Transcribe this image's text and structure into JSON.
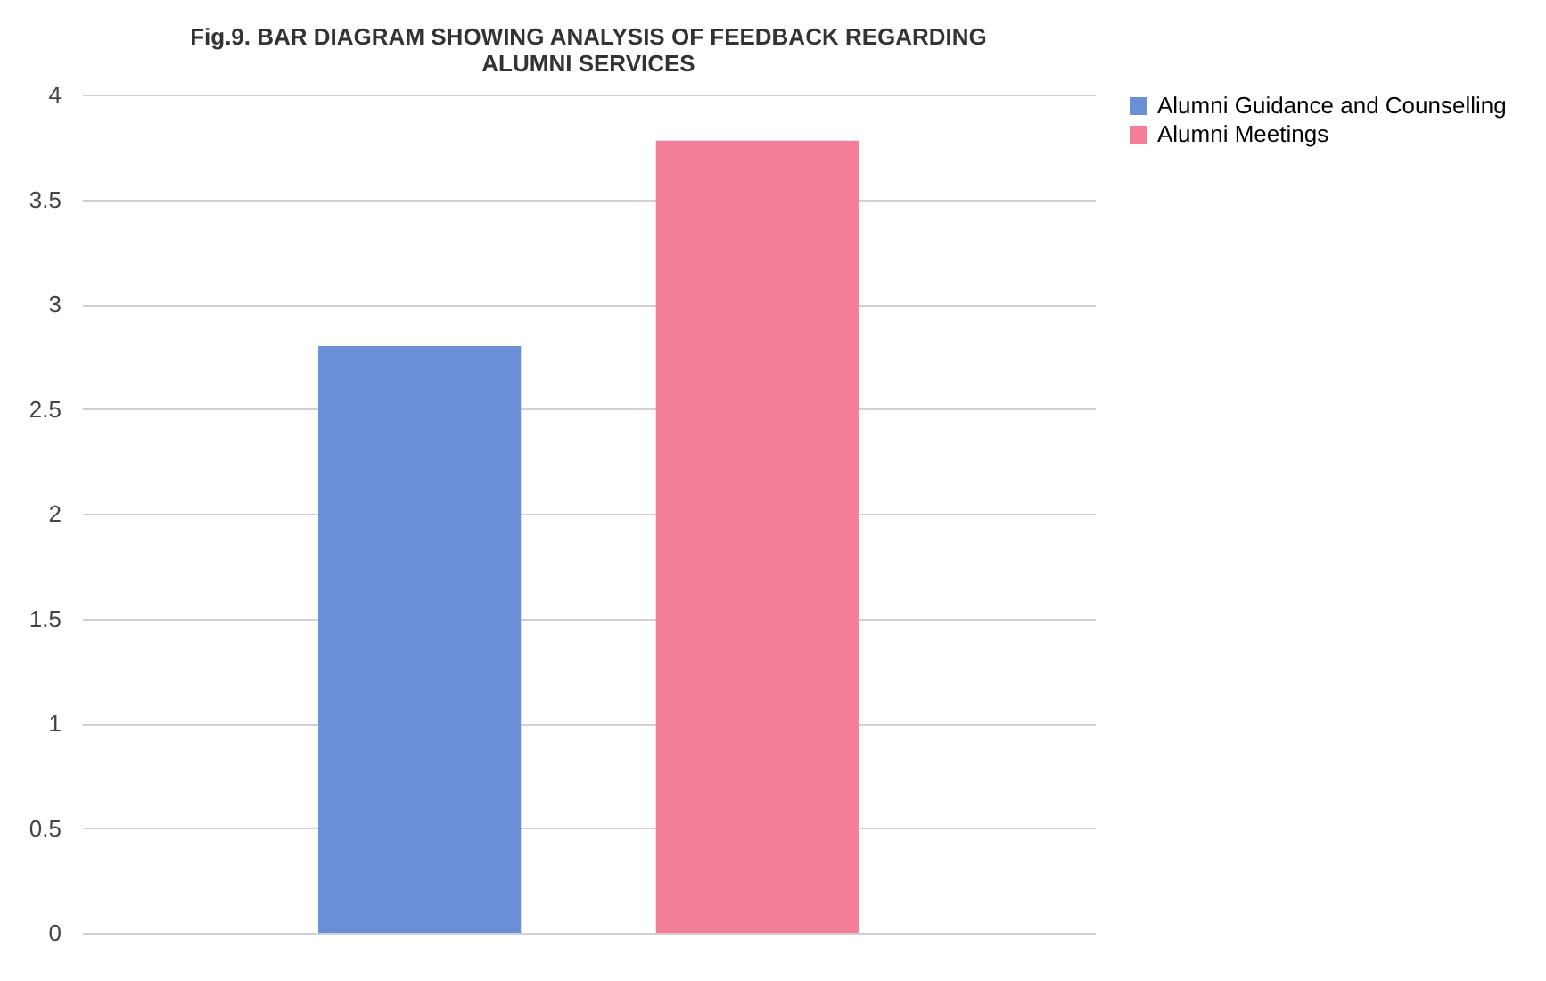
{
  "chart_data": {
    "type": "bar",
    "title": [
      "Fig.9. BAR DIAGRAM SHOWING ANALYSIS OF FEEDBACK REGARDING",
      "ALUMNI SERVICES"
    ],
    "categories": [
      null
    ],
    "series": [
      {
        "name": "Alumni Guidance and Counselling",
        "color": "#6a8fd6",
        "values": [
          2.8
        ]
      },
      {
        "name": "Alumni Meetings",
        "color": "#f47d99",
        "values": [
          3.78
        ]
      }
    ],
    "ylim": [
      0,
      4
    ],
    "yticks": [
      0,
      0.5,
      1,
      1.5,
      2,
      2.5,
      3,
      3.5,
      4
    ],
    "grid": "y",
    "legend": "right"
  }
}
